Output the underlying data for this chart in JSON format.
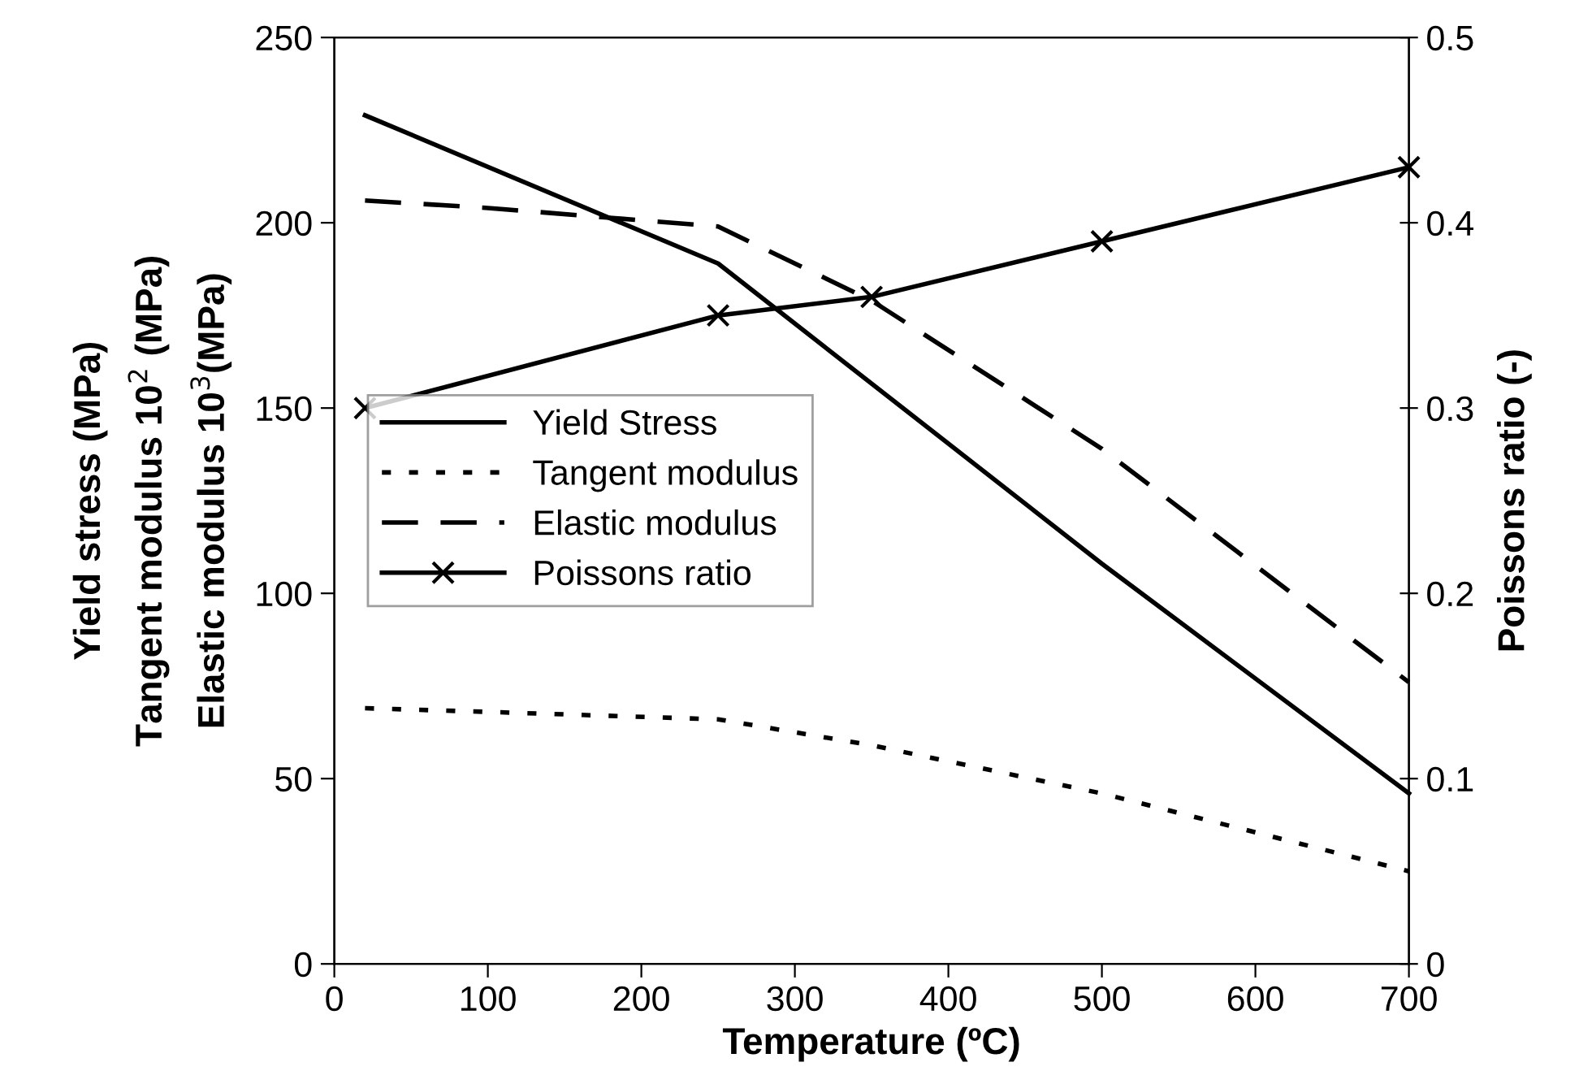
{
  "chart_data": {
    "type": "line",
    "xlabel": "Temperature (ºC)",
    "ylabel": "Yield stress (MPa)\nTangent modulus 10$^{2}$ (MPa)\nElastic modulus 10$^{3}$(MPa)",
    "y2label": "Poissons ratio (-)",
    "xlim": [
      0,
      700
    ],
    "xticks": [
      0,
      100,
      200,
      300,
      400,
      500,
      600,
      700
    ],
    "ylim": [
      0,
      250
    ],
    "yticks": [
      0,
      50,
      100,
      150,
      200,
      250
    ],
    "y2lim": [
      0,
      0.5
    ],
    "y2ticks": [
      0,
      0.1,
      0.2,
      0.3,
      0.4,
      0.5
    ],
    "grid": false,
    "legend": "center left",
    "series": [
      {
        "name": "Yield Stress",
        "color": "#000000",
        "line_style": "solid",
        "marker": "none",
        "x": [
          20,
          250,
          500,
          700
        ],
        "values": [
          229,
          189,
          108,
          46
        ]
      },
      {
        "name": "Tangent modulus",
        "color": "#000000",
        "line_style": "dotted",
        "marker": "none",
        "x": [
          20,
          100,
          250,
          350,
          500,
          700
        ],
        "values": [
          69,
          68,
          66,
          59,
          46,
          25
        ]
      },
      {
        "name": "Elastic modulus",
        "color": "#000000",
        "line_style": "dashed",
        "marker": "none",
        "x": [
          20,
          100,
          250,
          350,
          500,
          700
        ],
        "values": [
          206,
          204,
          199,
          179,
          139,
          76
        ]
      },
      {
        "name": "Poissons ratio",
        "color": "#000000",
        "line_style": "solid",
        "marker": "cross",
        "axis": "y2",
        "x": [
          20,
          250,
          350,
          500,
          700
        ],
        "values": [
          0.3,
          0.35,
          0.36,
          0.39,
          0.43
        ]
      }
    ]
  }
}
